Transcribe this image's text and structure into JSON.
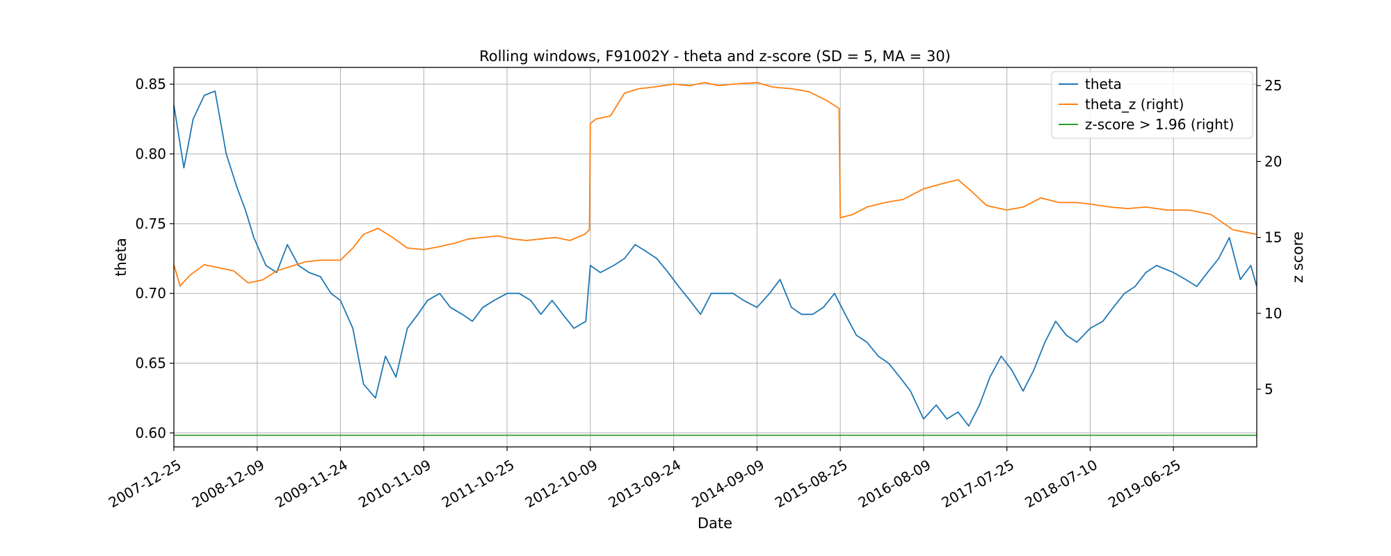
{
  "chart_data": {
    "type": "line",
    "title": "Rolling windows, F91002Y - theta and z-score (SD = 5, MA = 30)",
    "xlabel": "Date",
    "ylabel_left": "theta",
    "ylabel_right": "z score",
    "x_tick_labels": [
      "2007-12-25",
      "2008-12-09",
      "2009-11-24",
      "2010-11-09",
      "2011-10-25",
      "2012-10-09",
      "2013-09-24",
      "2014-09-09",
      "2015-08-25",
      "2016-08-09",
      "2017-07-25",
      "2018-07-10",
      "2019-06-25"
    ],
    "x_range": [
      "2007-12-25",
      "2020-06-09"
    ],
    "ylim_left": [
      0.59,
      0.862
    ],
    "yticks_left": [
      "0.60",
      "0.65",
      "0.70",
      "0.75",
      "0.80",
      "0.85"
    ],
    "ylim_right": [
      1.2,
      26.2
    ],
    "yticks_right": [
      "5",
      "10",
      "15",
      "20",
      "25"
    ],
    "grid": true,
    "legend_position": "top-right",
    "colors": {
      "theta": "#1f77b4",
      "theta_z": "#ff7f0e",
      "zscore": "#2ca02c"
    },
    "series": [
      {
        "name": "theta",
        "axis": "left",
        "x": [
          "2007-12-25",
          "2008-02-05",
          "2008-03-15",
          "2008-05-01",
          "2008-06-15",
          "2008-08-01",
          "2008-09-15",
          "2008-10-20",
          "2008-11-25",
          "2009-01-15",
          "2009-03-01",
          "2009-04-15",
          "2009-06-01",
          "2009-07-15",
          "2009-09-01",
          "2009-10-15",
          "2009-11-24",
          "2010-01-15",
          "2010-03-01",
          "2010-04-20",
          "2010-06-01",
          "2010-07-15",
          "2010-09-01",
          "2010-10-15",
          "2010-11-25",
          "2011-01-15",
          "2011-03-01",
          "2011-04-20",
          "2011-06-01",
          "2011-07-15",
          "2011-09-01",
          "2011-10-25",
          "2011-12-15",
          "2012-02-01",
          "2012-03-15",
          "2012-05-01",
          "2012-06-15",
          "2012-08-01",
          "2012-09-20",
          "2012-10-09",
          "2012-11-20",
          "2013-01-15",
          "2013-03-01",
          "2013-04-15",
          "2013-06-01",
          "2013-07-15",
          "2013-09-01",
          "2013-10-15",
          "2013-12-01",
          "2014-01-15",
          "2014-03-01",
          "2014-04-15",
          "2014-06-01",
          "2014-07-15",
          "2014-09-09",
          "2014-11-01",
          "2014-12-15",
          "2015-02-01",
          "2015-03-15",
          "2015-05-01",
          "2015-06-15",
          "2015-08-01",
          "2015-09-15",
          "2015-11-01",
          "2015-12-15",
          "2016-02-01",
          "2016-03-15",
          "2016-05-01",
          "2016-06-15",
          "2016-08-09",
          "2016-10-01",
          "2016-11-15",
          "2017-01-01",
          "2017-02-15",
          "2017-04-01",
          "2017-05-15",
          "2017-07-01",
          "2017-08-15",
          "2017-10-01",
          "2017-11-15",
          "2018-01-01",
          "2018-02-15",
          "2018-04-01",
          "2018-05-15",
          "2018-07-10",
          "2018-09-01",
          "2018-10-15",
          "2018-12-01",
          "2019-01-15",
          "2019-03-01",
          "2019-04-15",
          "2019-06-25",
          "2019-08-15",
          "2019-10-01",
          "2019-11-15",
          "2020-01-01",
          "2020-02-15",
          "2020-04-01",
          "2020-05-15",
          "2020-06-09"
        ],
        "values": [
          0.835,
          0.79,
          0.825,
          0.842,
          0.845,
          0.8,
          0.776,
          0.76,
          0.74,
          0.72,
          0.715,
          0.735,
          0.72,
          0.715,
          0.712,
          0.7,
          0.695,
          0.675,
          0.635,
          0.625,
          0.655,
          0.64,
          0.675,
          0.685,
          0.695,
          0.7,
          0.69,
          0.685,
          0.68,
          0.69,
          0.695,
          0.7,
          0.7,
          0.695,
          0.685,
          0.695,
          0.685,
          0.675,
          0.68,
          0.72,
          0.715,
          0.72,
          0.725,
          0.735,
          0.73,
          0.725,
          0.715,
          0.705,
          0.695,
          0.685,
          0.7,
          0.7,
          0.7,
          0.695,
          0.69,
          0.7,
          0.71,
          0.69,
          0.685,
          0.685,
          0.69,
          0.7,
          0.685,
          0.67,
          0.665,
          0.655,
          0.65,
          0.64,
          0.63,
          0.61,
          0.62,
          0.61,
          0.615,
          0.605,
          0.62,
          0.64,
          0.655,
          0.645,
          0.63,
          0.645,
          0.665,
          0.68,
          0.67,
          0.665,
          0.675,
          0.68,
          0.69,
          0.7,
          0.705,
          0.715,
          0.72,
          0.715,
          0.71,
          0.705,
          0.715,
          0.725,
          0.74,
          0.71,
          0.72,
          0.705
        ]
      },
      {
        "name": "theta_z (right)",
        "axis": "right",
        "x": [
          "2007-12-25",
          "2008-01-20",
          "2008-03-01",
          "2008-05-01",
          "2008-07-01",
          "2008-09-01",
          "2008-11-01",
          "2009-01-01",
          "2009-03-01",
          "2009-05-01",
          "2009-07-01",
          "2009-09-01",
          "2009-11-24",
          "2010-01-15",
          "2010-03-01",
          "2010-05-01",
          "2010-07-01",
          "2010-09-01",
          "2010-11-09",
          "2011-01-15",
          "2011-03-15",
          "2011-05-15",
          "2011-07-15",
          "2011-09-15",
          "2011-11-15",
          "2012-01-15",
          "2012-03-15",
          "2012-05-15",
          "2012-07-15",
          "2012-09-15",
          "2012-10-05",
          "2012-10-09",
          "2012-11-01",
          "2013-01-01",
          "2013-03-01",
          "2013-05-01",
          "2013-07-01",
          "2013-09-24",
          "2013-12-01",
          "2014-02-01",
          "2014-04-01",
          "2014-06-01",
          "2014-09-09",
          "2014-11-15",
          "2015-02-01",
          "2015-04-15",
          "2015-07-01",
          "2015-08-20",
          "2015-08-25",
          "2015-10-15",
          "2015-12-15",
          "2016-03-01",
          "2016-05-15",
          "2016-08-09",
          "2016-10-15",
          "2017-01-01",
          "2017-03-01",
          "2017-05-01",
          "2017-07-25",
          "2017-10-01",
          "2017-12-15",
          "2018-03-01",
          "2018-05-15",
          "2018-07-10",
          "2018-10-01",
          "2018-12-15",
          "2019-03-01",
          "2019-06-01",
          "2019-09-01",
          "2019-12-01",
          "2020-03-01",
          "2020-06-09"
        ],
        "values": [
          13.2,
          11.8,
          12.5,
          13.2,
          13.0,
          12.8,
          12.0,
          12.2,
          12.8,
          13.1,
          13.4,
          13.5,
          13.5,
          14.3,
          15.2,
          15.6,
          15.0,
          14.3,
          14.2,
          14.4,
          14.6,
          14.9,
          15.0,
          15.1,
          14.9,
          14.8,
          14.9,
          15.0,
          14.8,
          15.2,
          15.5,
          22.5,
          22.8,
          23.0,
          24.5,
          24.8,
          24.9,
          25.1,
          25.0,
          25.2,
          25.0,
          25.1,
          25.2,
          24.9,
          24.8,
          24.6,
          24.0,
          23.5,
          16.3,
          16.5,
          17.0,
          17.3,
          17.5,
          18.2,
          18.5,
          18.8,
          18.0,
          17.1,
          16.8,
          17.0,
          17.6,
          17.3,
          17.3,
          17.2,
          17.0,
          16.9,
          17.0,
          16.8,
          16.8,
          16.5,
          15.5,
          15.2
        ]
      },
      {
        "name": "z-score > 1.96 (right)",
        "axis": "right",
        "x": [
          "2007-12-25",
          "2020-06-09"
        ],
        "values": [
          1.96,
          1.96
        ]
      }
    ]
  }
}
